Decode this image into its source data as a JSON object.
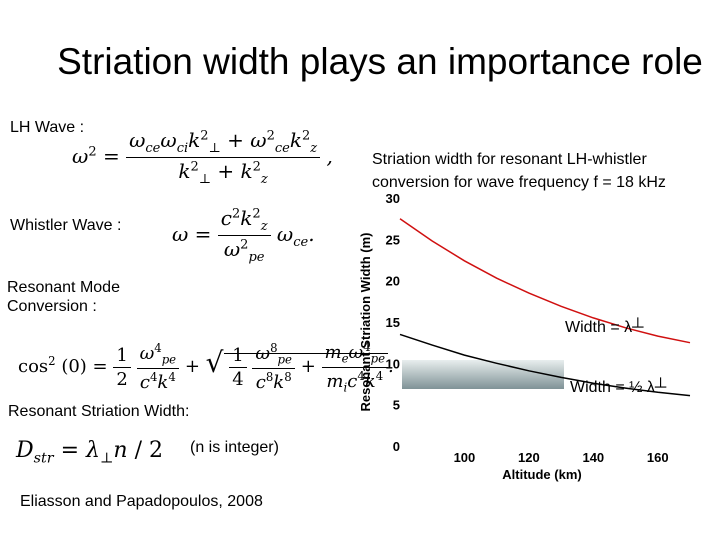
{
  "title": "Striation width plays an importance role",
  "labels": {
    "lh_wave": "LH Wave :",
    "whistler_wave": "Whistler Wave :",
    "resonant_mode_line1": "Resonant Mode",
    "resonant_mode_line2": "Conversion :",
    "resonant_striation_width": "Resonant Striation Width:",
    "n_is_integer": "(n is integer)",
    "citation": "Eliasson and Papadopoulos, 2008"
  },
  "chart_caption_line1": "Striation width for resonant LH-whistler",
  "chart_caption_line2": "conversion for wave frequency f = 18 kHz",
  "chart_data": {
    "type": "line",
    "xlabel": "Altitude (km)",
    "ylabel": "Resonant Striation Width (m)",
    "xlim": [
      80,
      170
    ],
    "ylim": [
      0,
      30
    ],
    "x_ticks": [
      "100",
      "120",
      "140",
      "160"
    ],
    "y_ticks": [
      "0",
      "5",
      "10",
      "15",
      "20",
      "25",
      "30"
    ],
    "series": [
      {
        "name": "Width = λ┴",
        "color": "#d01010",
        "x": [
          80,
          90,
          100,
          110,
          120,
          130,
          140,
          150,
          160,
          170
        ],
        "y": [
          27.5,
          24.8,
          22.4,
          20.3,
          18.5,
          16.9,
          15.5,
          14.3,
          13.3,
          12.5
        ]
      },
      {
        "name": "Width = ½ λ┴",
        "color": "#000000",
        "x": [
          80,
          90,
          100,
          110,
          120,
          130,
          140,
          150,
          160,
          170
        ],
        "y": [
          13.5,
          12.2,
          11.0,
          10.0,
          9.1,
          8.3,
          7.6,
          7.0,
          6.5,
          6.1
        ]
      }
    ]
  }
}
